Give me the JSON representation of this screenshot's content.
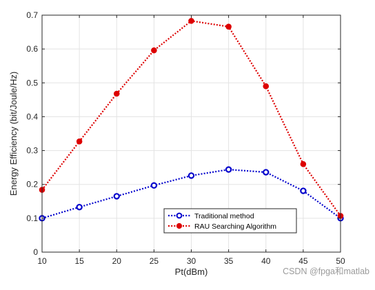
{
  "chart_data": {
    "type": "line",
    "xlabel": "Pt(dBm)",
    "ylabel": "Energy Efficiency (bit/Joule/Hz)",
    "xlim": [
      10,
      50
    ],
    "ylim": [
      0,
      0.7
    ],
    "x": [
      10,
      15,
      20,
      25,
      30,
      35,
      40,
      45,
      50
    ],
    "xticks": [
      10,
      15,
      20,
      25,
      30,
      35,
      40,
      45,
      50
    ],
    "yticks": [
      0,
      0.1,
      0.2,
      0.3,
      0.4,
      0.5,
      0.6,
      0.7
    ],
    "grid": true,
    "legend_position": "bottom-right",
    "series": [
      {
        "name": "Traditional method",
        "values": [
          0.1,
          0.133,
          0.165,
          0.197,
          0.226,
          0.244,
          0.236,
          0.181,
          0.1
        ],
        "color": "#0000cc",
        "marker": "open-circle",
        "line_style": "dotted"
      },
      {
        "name": "RAU Searching Algorithm",
        "values": [
          0.184,
          0.327,
          0.468,
          0.596,
          0.683,
          0.666,
          0.49,
          0.26,
          0.107
        ],
        "color": "#dd0000",
        "marker": "filled-circle",
        "line_style": "dotted"
      }
    ]
  },
  "watermark": "CSDN @fpga和matlab"
}
